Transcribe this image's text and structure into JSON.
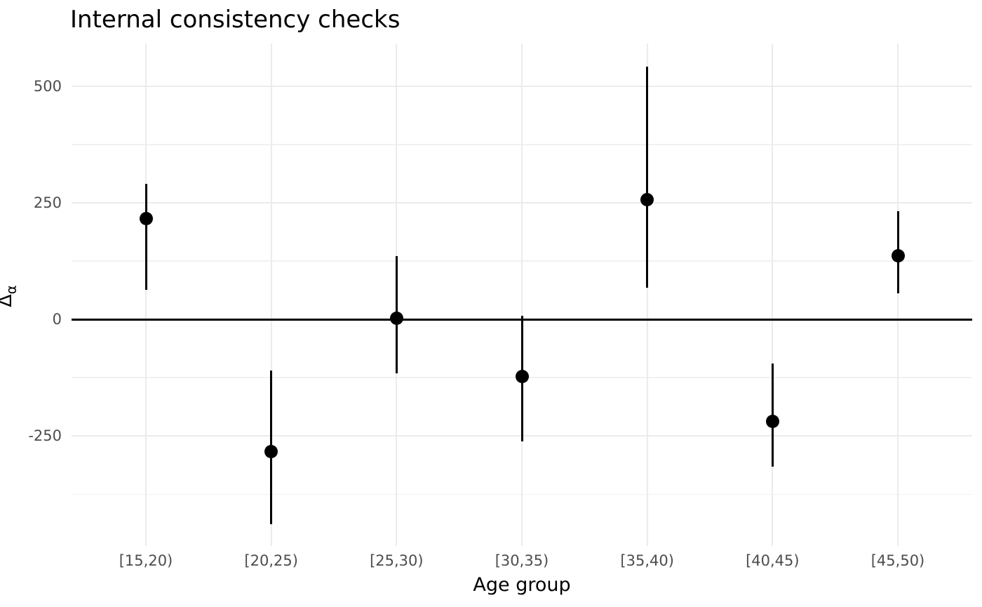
{
  "chart_data": {
    "type": "pointrange",
    "title": "Internal consistency checks",
    "xlabel": "Age group",
    "ylabel": "Δα",
    "ylabel_main": "Δ",
    "ylabel_sub": "α",
    "categories": [
      "[15,20)",
      "[20,25)",
      "[25,30)",
      "[30,35)",
      "[35,40)",
      "[40,45)",
      "[45,50)"
    ],
    "points": [
      {
        "category": "[15,20)",
        "estimate": 217,
        "lower": 63,
        "upper": 291
      },
      {
        "category": "[20,25)",
        "estimate": -283,
        "lower": -440,
        "upper": -110
      },
      {
        "category": "[25,30)",
        "estimate": 3,
        "lower": -116,
        "upper": 136
      },
      {
        "category": "[30,35)",
        "estimate": -122,
        "lower": -261,
        "upper": 8
      },
      {
        "category": "[35,40)",
        "estimate": 257,
        "lower": 68,
        "upper": 542
      },
      {
        "category": "[40,45)",
        "estimate": -219,
        "lower": -316,
        "upper": -95
      },
      {
        "category": "[45,50)",
        "estimate": 137,
        "lower": 56,
        "upper": 232
      }
    ],
    "y_major_ticks": [
      500,
      250,
      0,
      -250
    ],
    "y_tick_labels": [
      "500",
      "250",
      "0",
      "-250"
    ],
    "y_minor_ticks": [
      375,
      125,
      -125,
      -375
    ],
    "ylim": [
      -486,
      592
    ],
    "zero_reference_line": 0,
    "grid": true,
    "legend": "none",
    "colors": {
      "background": "#FFFFFF",
      "grid_major": "#EBEBEB",
      "grid_minor": "#F1F1F1",
      "axis_text": "#4D4D4D",
      "title_text": "#000000",
      "point": "#000000",
      "zero_line": "#000000"
    }
  }
}
